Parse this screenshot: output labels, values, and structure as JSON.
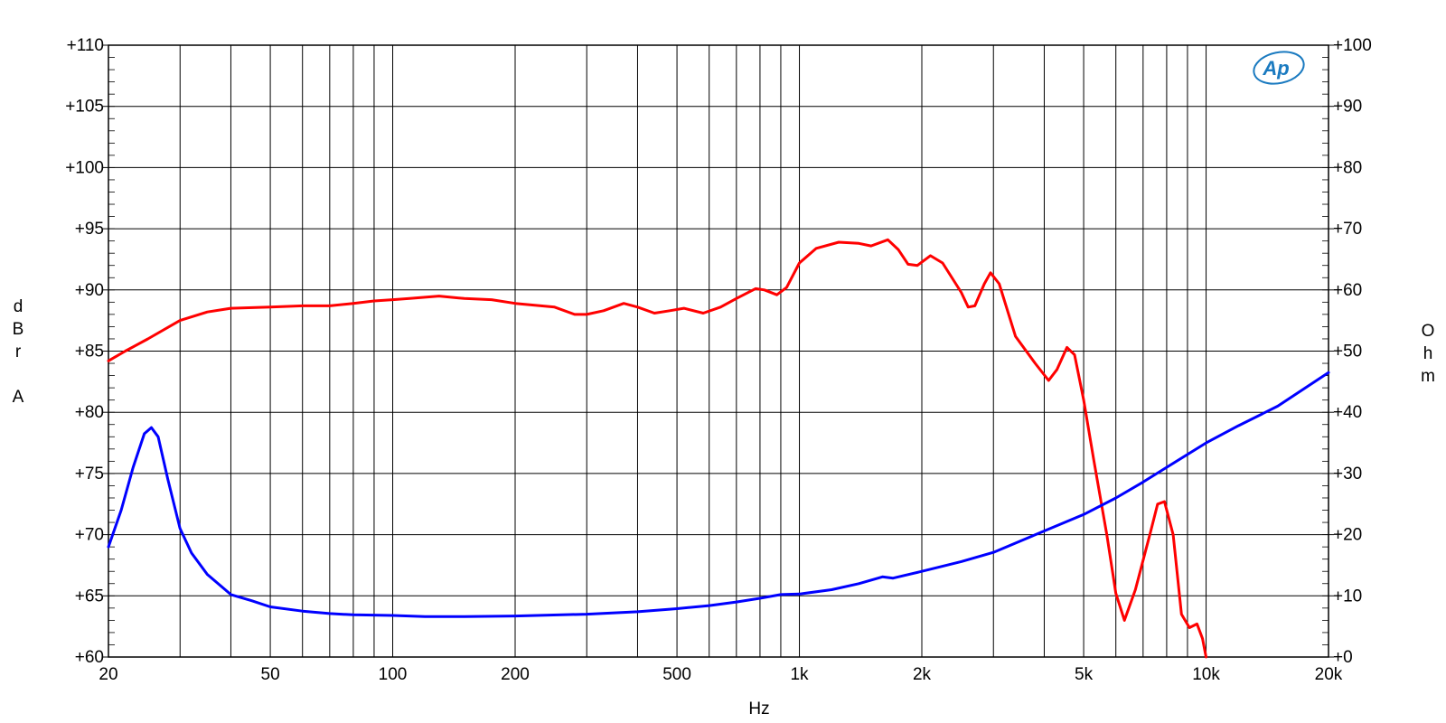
{
  "chart_data": {
    "type": "line",
    "x_scale": "log",
    "xlabel": "Hz",
    "ylabel_left": [
      "d",
      "B",
      "r",
      "",
      "A"
    ],
    "ylabel_right": [
      "O",
      "h",
      "m"
    ],
    "xlim": [
      20,
      20000
    ],
    "ylim_left": [
      60,
      110
    ],
    "ylim_right": [
      0,
      100
    ],
    "grid": true,
    "x_ticks": [
      {
        "value": 20,
        "label": "20"
      },
      {
        "value": 50,
        "label": "50"
      },
      {
        "value": 100,
        "label": "100"
      },
      {
        "value": 200,
        "label": "200"
      },
      {
        "value": 500,
        "label": "500"
      },
      {
        "value": 1000,
        "label": "1k"
      },
      {
        "value": 2000,
        "label": "2k"
      },
      {
        "value": 5000,
        "label": "5k"
      },
      {
        "value": 10000,
        "label": "10k"
      },
      {
        "value": 20000,
        "label": "20k"
      }
    ],
    "left_ticks": [
      {
        "value": 60,
        "label": "+60"
      },
      {
        "value": 65,
        "label": "+65"
      },
      {
        "value": 70,
        "label": "+70"
      },
      {
        "value": 75,
        "label": "+75"
      },
      {
        "value": 80,
        "label": "+80"
      },
      {
        "value": 85,
        "label": "+85"
      },
      {
        "value": 90,
        "label": "+90"
      },
      {
        "value": 95,
        "label": "+95"
      },
      {
        "value": 100,
        "label": "+100"
      },
      {
        "value": 105,
        "label": "+105"
      },
      {
        "value": 110,
        "label": "+110"
      }
    ],
    "right_ticks": [
      {
        "value": 0,
        "label": "+0"
      },
      {
        "value": 10,
        "label": "+10"
      },
      {
        "value": 20,
        "label": "+20"
      },
      {
        "value": 30,
        "label": "+30"
      },
      {
        "value": 40,
        "label": "+40"
      },
      {
        "value": 50,
        "label": "+50"
      },
      {
        "value": 60,
        "label": "+60"
      },
      {
        "value": 70,
        "label": "+70"
      },
      {
        "value": 80,
        "label": "+80"
      },
      {
        "value": 90,
        "label": "+90"
      },
      {
        "value": 100,
        "label": "+100"
      }
    ],
    "series": [
      {
        "color": "#ff0000",
        "axis": "left",
        "points": [
          [
            20,
            84.2
          ],
          [
            22,
            85.0
          ],
          [
            25,
            86.0
          ],
          [
            30,
            87.5
          ],
          [
            35,
            88.2
          ],
          [
            40,
            88.5
          ],
          [
            50,
            88.6
          ],
          [
            60,
            88.7
          ],
          [
            70,
            88.7
          ],
          [
            80,
            88.9
          ],
          [
            90,
            89.1
          ],
          [
            100,
            89.2
          ],
          [
            110,
            89.3
          ],
          [
            120,
            89.4
          ],
          [
            130,
            89.5
          ],
          [
            150,
            89.3
          ],
          [
            175,
            89.2
          ],
          [
            200,
            88.9
          ],
          [
            250,
            88.6
          ],
          [
            280,
            88.0
          ],
          [
            300,
            88.0
          ],
          [
            330,
            88.3
          ],
          [
            370,
            88.9
          ],
          [
            400,
            88.6
          ],
          [
            440,
            88.1
          ],
          [
            480,
            88.3
          ],
          [
            520,
            88.5
          ],
          [
            580,
            88.1
          ],
          [
            640,
            88.6
          ],
          [
            700,
            89.3
          ],
          [
            780,
            90.1
          ],
          [
            820,
            90.0
          ],
          [
            880,
            89.6
          ],
          [
            930,
            90.2
          ],
          [
            1000,
            92.2
          ],
          [
            1100,
            93.4
          ],
          [
            1250,
            93.9
          ],
          [
            1400,
            93.8
          ],
          [
            1500,
            93.6
          ],
          [
            1650,
            94.1
          ],
          [
            1750,
            93.3
          ],
          [
            1850,
            92.1
          ],
          [
            1950,
            92.0
          ],
          [
            2100,
            92.8
          ],
          [
            2250,
            92.2
          ],
          [
            2500,
            89.8
          ],
          [
            2600,
            88.6
          ],
          [
            2700,
            88.7
          ],
          [
            2850,
            90.5
          ],
          [
            2950,
            91.4
          ],
          [
            3100,
            90.5
          ],
          [
            3400,
            86.2
          ],
          [
            3800,
            84.0
          ],
          [
            4100,
            82.6
          ],
          [
            4300,
            83.5
          ],
          [
            4550,
            85.3
          ],
          [
            4750,
            84.7
          ],
          [
            5000,
            81.0
          ],
          [
            5300,
            76.0
          ],
          [
            5700,
            70.0
          ],
          [
            6000,
            65.2
          ],
          [
            6300,
            63.0
          ],
          [
            6700,
            65.5
          ],
          [
            7300,
            70.2
          ],
          [
            7600,
            72.5
          ],
          [
            7900,
            72.7
          ],
          [
            8300,
            70.0
          ],
          [
            8700,
            63.5
          ],
          [
            9100,
            62.4
          ],
          [
            9500,
            62.7
          ],
          [
            9800,
            61.5
          ],
          [
            10000,
            60.0
          ]
        ]
      },
      {
        "color": "#0000ff",
        "axis": "right",
        "points": [
          [
            20,
            18.0
          ],
          [
            21.5,
            24.0
          ],
          [
            23,
            31.0
          ],
          [
            24.5,
            36.5
          ],
          [
            25.5,
            37.5
          ],
          [
            26.5,
            36.0
          ],
          [
            28,
            29.0
          ],
          [
            30,
            21.0
          ],
          [
            32,
            17.0
          ],
          [
            35,
            13.5
          ],
          [
            40,
            10.2
          ],
          [
            45,
            9.2
          ],
          [
            50,
            8.2
          ],
          [
            60,
            7.5
          ],
          [
            70,
            7.1
          ],
          [
            80,
            6.9
          ],
          [
            100,
            6.8
          ],
          [
            120,
            6.6
          ],
          [
            150,
            6.6
          ],
          [
            200,
            6.7
          ],
          [
            300,
            7.0
          ],
          [
            400,
            7.4
          ],
          [
            500,
            7.9
          ],
          [
            600,
            8.4
          ],
          [
            700,
            9.0
          ],
          [
            800,
            9.6
          ],
          [
            900,
            10.2
          ],
          [
            1000,
            10.3
          ],
          [
            1200,
            11.0
          ],
          [
            1400,
            12.0
          ],
          [
            1600,
            13.1
          ],
          [
            1700,
            12.9
          ],
          [
            2000,
            14.0
          ],
          [
            2500,
            15.6
          ],
          [
            3000,
            17.1
          ],
          [
            4000,
            20.6
          ],
          [
            5000,
            23.3
          ],
          [
            6000,
            26.0
          ],
          [
            7000,
            28.6
          ],
          [
            8000,
            31.0
          ],
          [
            10000,
            35.0
          ],
          [
            12000,
            37.8
          ],
          [
            15000,
            41.0
          ],
          [
            20000,
            46.5
          ]
        ]
      }
    ],
    "annotations": [
      "Ap"
    ]
  }
}
